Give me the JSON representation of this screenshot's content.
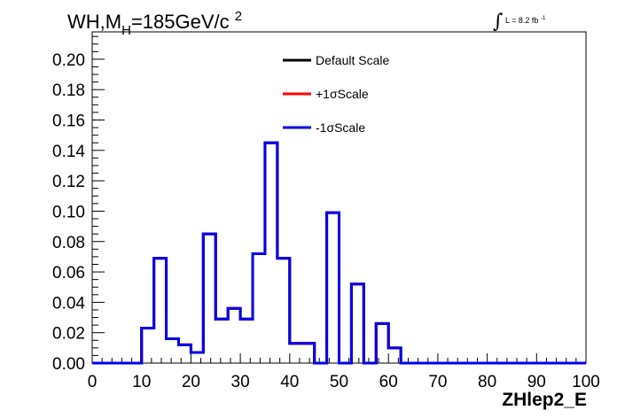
{
  "chart_data": {
    "type": "line",
    "title_main": "WH,M",
    "title_sub": "H",
    "title_rest": "=185GeV/c",
    "title_sup": "2",
    "lumi_text": "L = 8.2 fb",
    "lumi_sup": "-1",
    "xlabel": "ZHlep2_E",
    "ylabel": "",
    "xlim": [
      0,
      100
    ],
    "ylim": [
      0,
      0.218
    ],
    "x_ticks": [
      "0",
      "10",
      "20",
      "30",
      "40",
      "50",
      "60",
      "70",
      "80",
      "90",
      "100"
    ],
    "y_ticks": [
      "0.00",
      "0.02",
      "0.04",
      "0.06",
      "0.08",
      "0.10",
      "0.12",
      "0.14",
      "0.16",
      "0.18",
      "0.20"
    ],
    "legend_position": "top-center",
    "bin_edges": [
      0,
      2.5,
      5,
      7.5,
      10,
      12.5,
      15,
      17.5,
      20,
      22.5,
      25,
      27.5,
      30,
      32.5,
      35,
      37.5,
      40,
      42.5,
      45,
      47.5,
      50,
      52.5,
      55,
      57.5,
      60,
      62.5,
      65,
      67.5,
      70,
      72.5,
      75,
      77.5,
      80,
      82.5,
      85,
      87.5,
      90,
      92.5,
      95,
      97.5,
      100
    ],
    "series": [
      {
        "name": "Default Scale",
        "color": "#000000",
        "values": [
          0,
          0,
          0,
          0,
          0.023,
          0.069,
          0.016,
          0.012,
          0.007,
          0.085,
          0.029,
          0.036,
          0.029,
          0.072,
          0.145,
          0.069,
          0.013,
          0.013,
          0,
          0.099,
          0,
          0.052,
          0,
          0.026,
          0.01,
          0,
          0,
          0,
          0,
          0,
          0,
          0,
          0,
          0,
          0,
          0,
          0,
          0,
          0,
          0
        ]
      },
      {
        "name": "+1σScale",
        "color": "#ff0000",
        "values": [
          0,
          0,
          0,
          0,
          0.023,
          0.069,
          0.016,
          0.012,
          0.007,
          0.085,
          0.029,
          0.036,
          0.029,
          0.072,
          0.145,
          0.069,
          0.013,
          0.013,
          0,
          0.099,
          0,
          0.052,
          0,
          0.026,
          0.01,
          0,
          0,
          0,
          0,
          0,
          0,
          0,
          0,
          0,
          0,
          0,
          0,
          0,
          0,
          0
        ]
      },
      {
        "name": "-1σScale",
        "color": "#0000ee",
        "values": [
          0,
          0,
          0,
          0,
          0.023,
          0.069,
          0.016,
          0.012,
          0.007,
          0.085,
          0.029,
          0.036,
          0.029,
          0.072,
          0.145,
          0.069,
          0.013,
          0.013,
          0,
          0.099,
          0,
          0.052,
          0,
          0.026,
          0.01,
          0,
          0,
          0,
          0,
          0,
          0,
          0,
          0,
          0,
          0,
          0,
          0,
          0,
          0,
          0
        ]
      }
    ]
  }
}
